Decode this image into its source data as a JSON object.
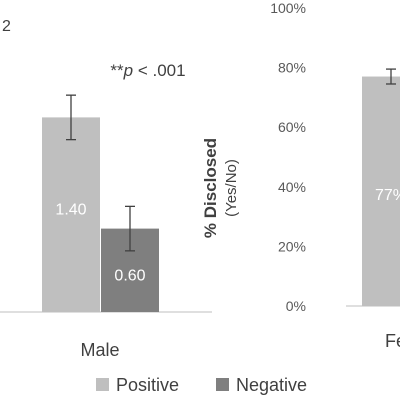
{
  "chart_data": [
    {
      "type": "bar",
      "panel_label": "2",
      "annotation": "**p < .001",
      "categories": [
        "Male"
      ],
      "series": [
        {
          "name": "Positive",
          "values": [
            1.4
          ],
          "error": [
            0.16
          ],
          "labels": [
            "1.40"
          ]
        },
        {
          "name": "Negative",
          "values": [
            0.6
          ],
          "error": [
            0.16
          ],
          "labels": [
            "0.60"
          ]
        }
      ],
      "ylim": [
        0,
        2.0
      ],
      "legend": {
        "placement": "bottom",
        "items": [
          {
            "name": "Positive",
            "color": "#bfbfbf"
          },
          {
            "name": "Negative",
            "color": "#7f7f7f"
          }
        ]
      }
    },
    {
      "type": "bar",
      "ylabel": "% Disclosed",
      "ylabel_sub": "(Yes/No)",
      "yticks": [
        "0%",
        "20%",
        "40%",
        "60%",
        "80%",
        "100%"
      ],
      "ylim": [
        0,
        100
      ],
      "categories": [
        "Fe"
      ],
      "series": [
        {
          "name": "Positive",
          "values": [
            77
          ],
          "error": [
            2.5
          ],
          "labels": [
            "77%"
          ]
        }
      ]
    }
  ],
  "colors": {
    "positive": "#bfbfbf",
    "negative": "#7f7f7f",
    "text": "#404040",
    "error_bar": "#404040",
    "axis": "#bfbfbf"
  }
}
